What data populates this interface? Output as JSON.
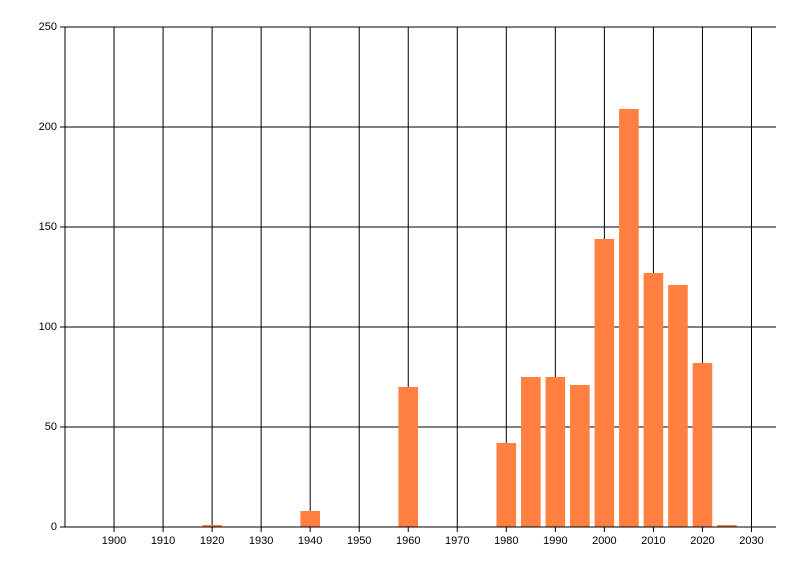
{
  "chart_data": {
    "type": "bar",
    "x": [
      1920,
      1940,
      1960,
      1980,
      1985,
      1990,
      1995,
      2000,
      2005,
      2010,
      2015,
      2020,
      2025
    ],
    "values": [
      1,
      8,
      70,
      42,
      75,
      75,
      71,
      144,
      209,
      127,
      121,
      82,
      1
    ],
    "color": "#ff8040",
    "xlim": [
      1890,
      2035
    ],
    "xticks": [
      1900,
      1910,
      1920,
      1930,
      1940,
      1950,
      1960,
      1970,
      1980,
      1990,
      2000,
      2010,
      2020,
      2030
    ],
    "ylim": [
      0,
      250
    ],
    "yticks": [
      0,
      50,
      100,
      150,
      200,
      250
    ],
    "grid": true
  }
}
